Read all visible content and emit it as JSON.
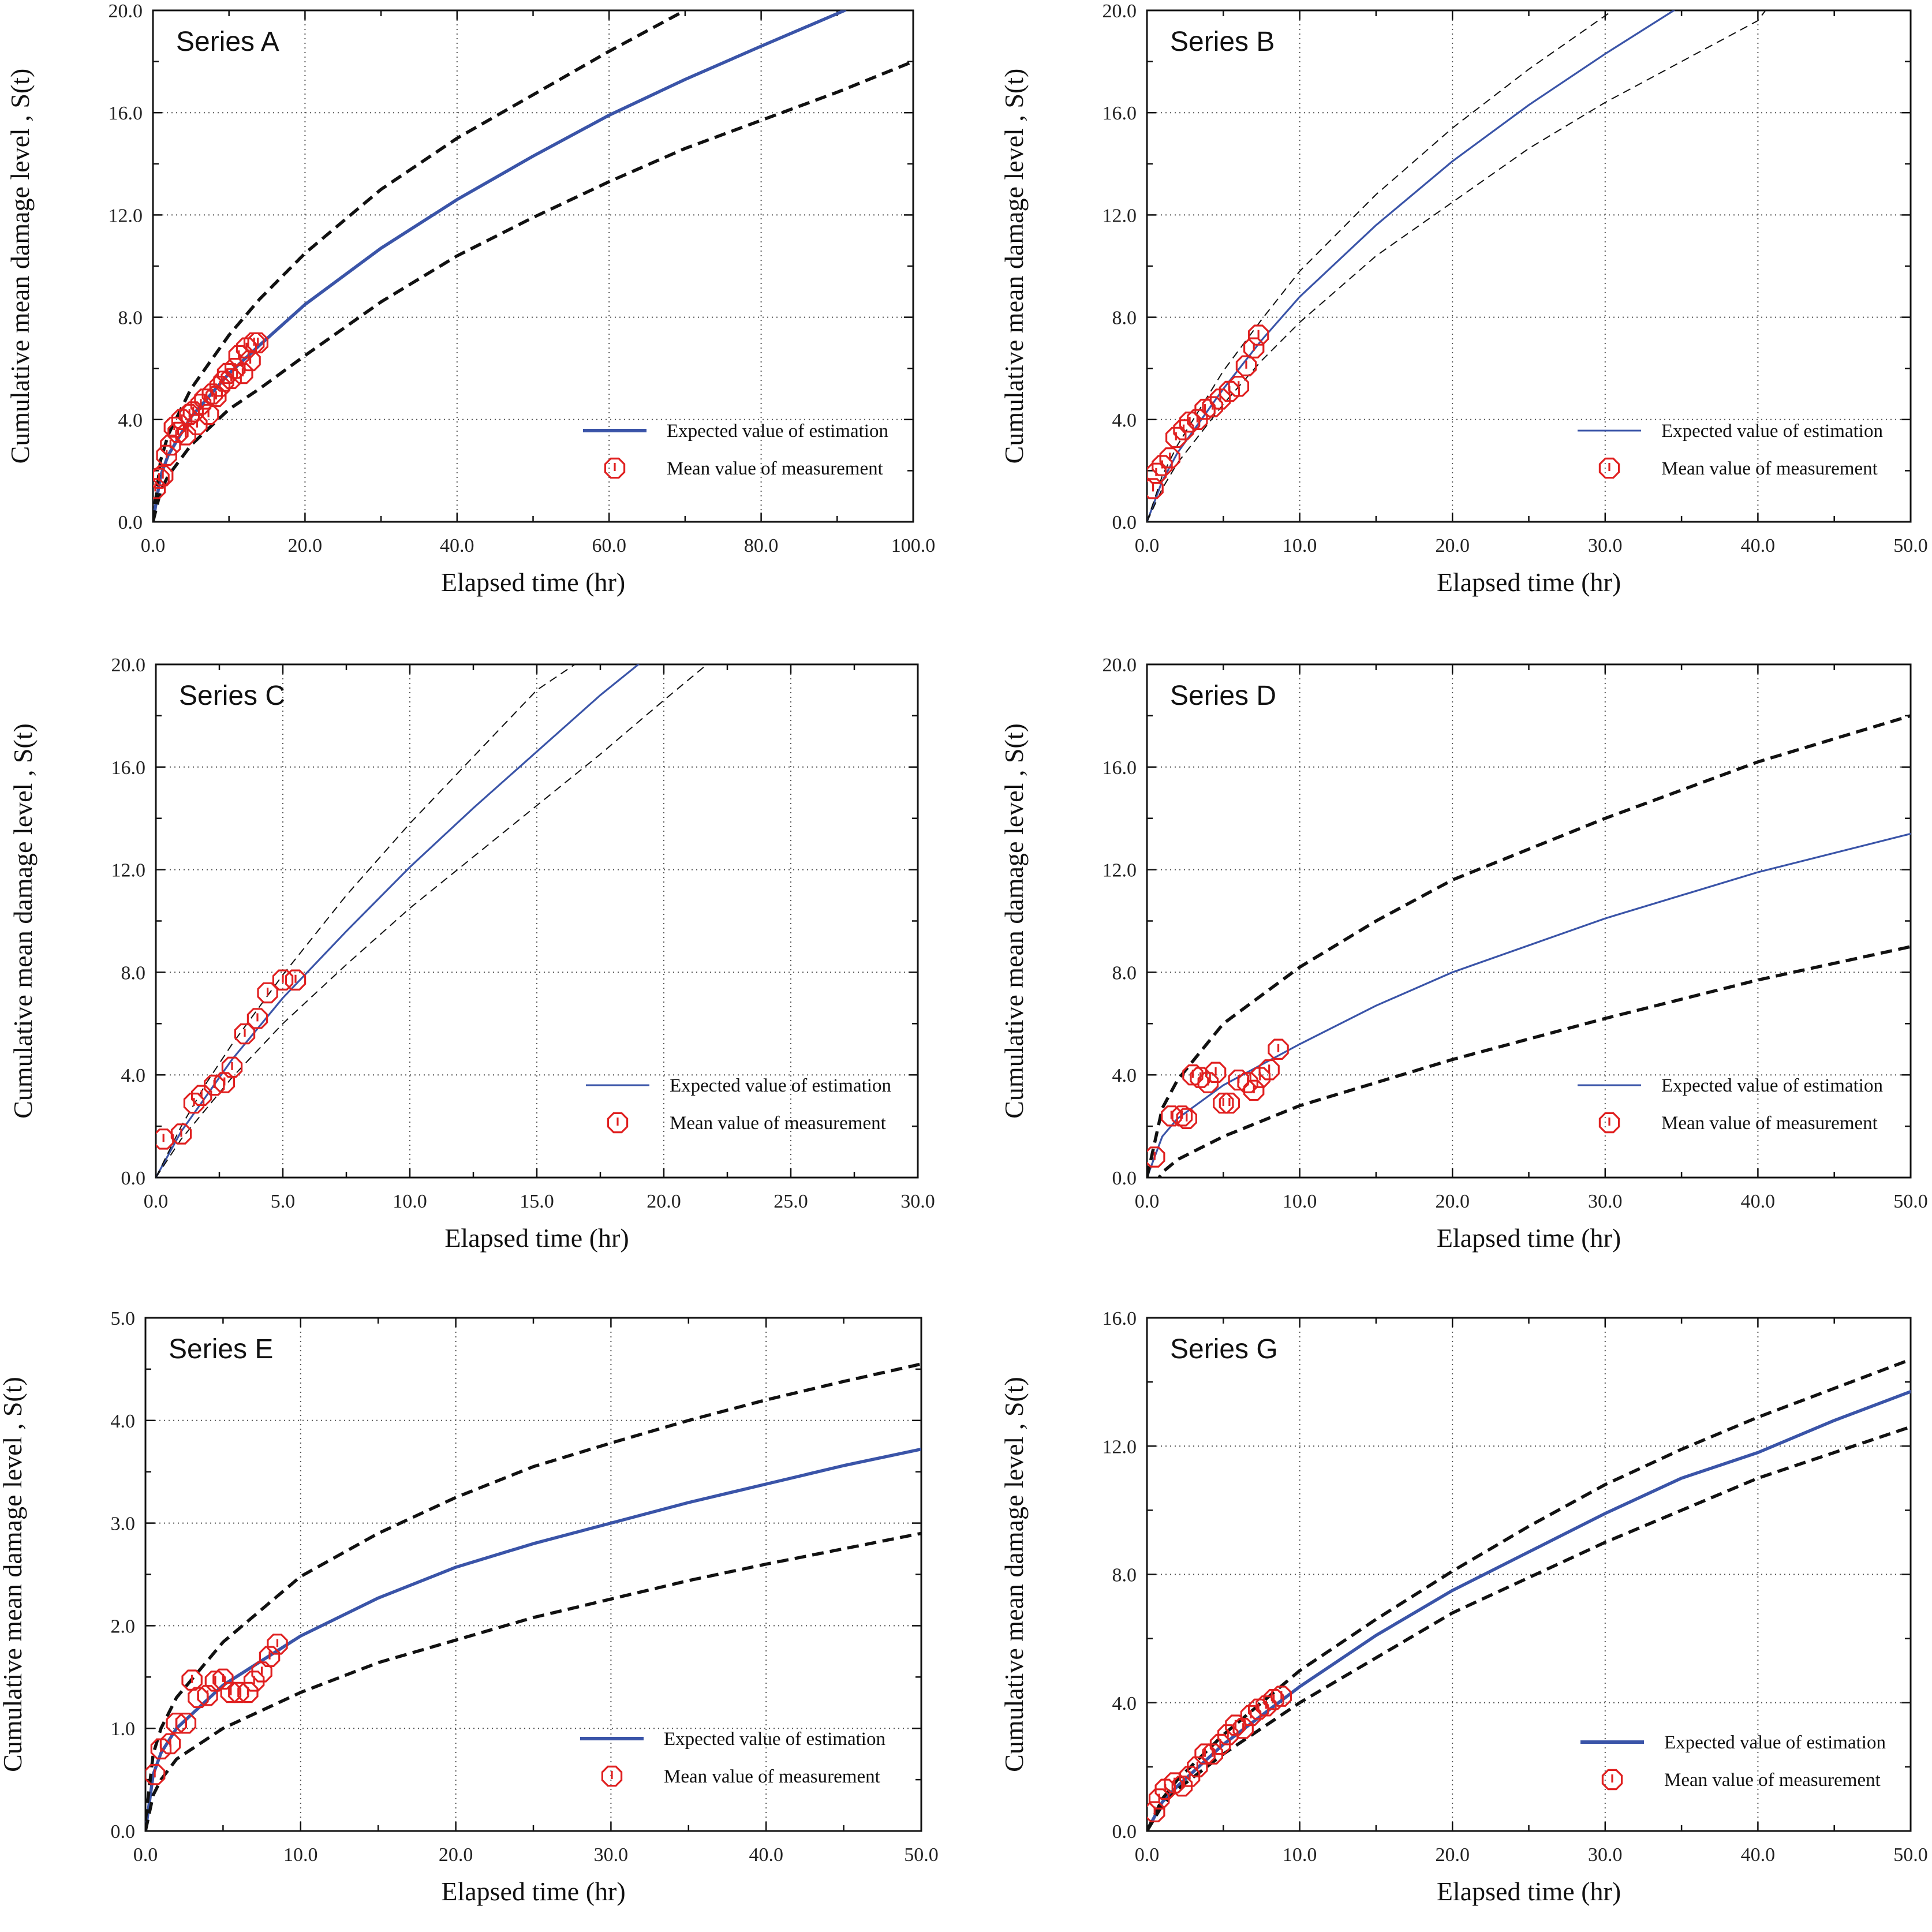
{
  "colors": {
    "expected": "#3a54a8",
    "bounds": "#111111",
    "measurement": "#e02020",
    "grid": "#555555",
    "axis": "#111111"
  },
  "chart_data": [
    {
      "type": "line",
      "title": "Series A",
      "xlabel": "Elapsed time (hr)",
      "ylabel": "Cumulative mean damage level , S(t)",
      "xlim": [
        0,
        100
      ],
      "ylim": [
        0,
        20
      ],
      "xticks": [
        0,
        20,
        40,
        60,
        80,
        100
      ],
      "xtick_labels": [
        "0.0",
        "20.0",
        "40.0",
        "60.0",
        "80.0",
        "100.0"
      ],
      "yticks": [
        0,
        4,
        8,
        12,
        16,
        20
      ],
      "ytick_labels": [
        "0.0",
        "4.0",
        "8.0",
        "12.0",
        "16.0",
        "20.0"
      ],
      "grid": true,
      "legend_style": "thick",
      "bounds_style": "thick",
      "legend": [
        "Expected value of estimation",
        "Mean value of measurement"
      ],
      "series": [
        {
          "name": "Expected value of estimation",
          "kind": "expected",
          "x": [
            0,
            1,
            2,
            5,
            10,
            14,
            20,
            30,
            40,
            50,
            60,
            70,
            80,
            91
          ],
          "y": [
            0,
            1.8,
            2.6,
            4.1,
            5.8,
            6.9,
            8.5,
            10.7,
            12.6,
            14.3,
            15.9,
            17.3,
            18.6,
            20
          ]
        },
        {
          "name": "Upper bound",
          "kind": "upper",
          "x": [
            0,
            1,
            2,
            5,
            10,
            14,
            20,
            30,
            40,
            50,
            60,
            70
          ],
          "y": [
            0,
            2.4,
            3.4,
            5.2,
            7.3,
            8.7,
            10.5,
            13.0,
            15.0,
            16.7,
            18.4,
            20
          ]
        },
        {
          "name": "Lower bound",
          "kind": "lower",
          "x": [
            0,
            1,
            2,
            5,
            10,
            14,
            20,
            30,
            40,
            50,
            60,
            70,
            80,
            90,
            100
          ],
          "y": [
            0,
            1.2,
            1.8,
            3.0,
            4.4,
            5.2,
            6.5,
            8.6,
            10.4,
            11.9,
            13.3,
            14.6,
            15.7,
            16.8,
            18.0
          ]
        },
        {
          "name": "Mean value of measurement",
          "kind": "measured",
          "x": [
            0.3,
            0.8,
            1.3,
            1.8,
            2.3,
            2.8,
            3.3,
            3.8,
            4.3,
            4.8,
            5.3,
            5.8,
            6.3,
            6.8,
            7.3,
            7.8,
            8.3,
            8.8,
            9.3,
            9.8,
            10.3,
            10.8,
            11.3,
            11.8,
            12.3,
            12.8,
            13.3,
            13.8
          ],
          "y": [
            1.3,
            1.7,
            1.8,
            2.6,
            3.0,
            3.7,
            3.5,
            4.0,
            3.4,
            4.2,
            4.3,
            3.8,
            4.6,
            4.8,
            4.2,
            5.0,
            4.9,
            5.3,
            5.5,
            5.8,
            5.6,
            6.0,
            6.5,
            5.8,
            6.8,
            6.3,
            7.0,
            7.0
          ]
        }
      ]
    },
    {
      "type": "line",
      "title": "Series B",
      "xlabel": "Elapsed time (hr)",
      "ylabel": "Cumulative mean damage level , S(t)",
      "xlim": [
        0,
        50
      ],
      "ylim": [
        0,
        20
      ],
      "xticks": [
        0,
        10,
        20,
        30,
        40,
        50
      ],
      "xtick_labels": [
        "0.0",
        "10.0",
        "20.0",
        "30.0",
        "40.0",
        "50.0"
      ],
      "yticks": [
        0,
        4,
        8,
        12,
        16,
        20
      ],
      "ytick_labels": [
        "0.0",
        "4.0",
        "8.0",
        "12.0",
        "16.0",
        "20.0"
      ],
      "grid": true,
      "legend_style": "thin",
      "bounds_style": "thin",
      "legend": [
        "Expected value of estimation",
        "Mean value of measurement"
      ],
      "series": [
        {
          "name": "Expected value of estimation",
          "kind": "expected",
          "x": [
            0,
            1,
            2,
            5,
            7.5,
            10,
            15,
            20,
            25,
            30,
            34.5
          ],
          "y": [
            0,
            1.6,
            2.7,
            5.2,
            7.1,
            8.8,
            11.6,
            14.1,
            16.3,
            18.3,
            20
          ]
        },
        {
          "name": "Upper bound",
          "kind": "upper",
          "x": [
            0,
            1,
            2,
            5,
            7.5,
            10,
            15,
            20,
            25,
            30.5
          ],
          "y": [
            0,
            1.8,
            3.0,
            5.9,
            7.9,
            9.8,
            12.8,
            15.4,
            17.7,
            20
          ]
        },
        {
          "name": "Lower bound",
          "kind": "lower",
          "x": [
            0,
            1,
            2,
            5,
            7.5,
            10,
            15,
            20,
            25,
            30,
            35,
            40,
            40.5
          ],
          "y": [
            0,
            1.3,
            2.3,
            4.6,
            6.3,
            7.8,
            10.4,
            12.5,
            14.6,
            16.4,
            18.0,
            19.6,
            20
          ]
        },
        {
          "name": "Mean value of measurement",
          "kind": "measured",
          "x": [
            0.4,
            0.6,
            1.0,
            1.5,
            1.9,
            2.4,
            2.8,
            3.3,
            3.8,
            4.3,
            4.8,
            5.4,
            6.0,
            6.5,
            7.0,
            7.3
          ],
          "y": [
            1.3,
            1.9,
            2.2,
            2.5,
            3.3,
            3.6,
            3.9,
            4.0,
            4.4,
            4.5,
            4.8,
            5.1,
            5.3,
            6.1,
            6.8,
            7.3
          ]
        }
      ]
    },
    {
      "type": "line",
      "title": "Series C",
      "xlabel": "Elapsed time (hr)",
      "ylabel": "Cumulative mean damage level , S(t)",
      "xlim": [
        0,
        30
      ],
      "ylim": [
        0,
        20
      ],
      "xticks": [
        0,
        5,
        10,
        15,
        20,
        25,
        30
      ],
      "xtick_labels": [
        "0.0",
        "5.0",
        "10.0",
        "15.0",
        "20.0",
        "25.0",
        "30.0"
      ],
      "yticks": [
        0,
        4,
        8,
        12,
        16,
        20
      ],
      "ytick_labels": [
        "0.0",
        "4.0",
        "8.0",
        "12.0",
        "16.0",
        "20.0"
      ],
      "grid": true,
      "legend_style": "thin",
      "bounds_style": "thin",
      "legend": [
        "Expected value of estimation",
        "Mean value of measurement"
      ],
      "series": [
        {
          "name": "Expected value of estimation",
          "kind": "expected",
          "x": [
            0,
            1,
            2,
            3,
            5,
            7.5,
            10,
            12.5,
            15,
            17.5,
            19
          ],
          "y": [
            0,
            1.8,
            3.2,
            4.6,
            7.0,
            9.6,
            12.1,
            14.4,
            16.6,
            18.8,
            20
          ]
        },
        {
          "name": "Upper bound",
          "kind": "upper",
          "x": [
            0,
            1,
            2,
            3,
            5,
            7.5,
            10,
            12.5,
            15,
            16.5
          ],
          "y": [
            0,
            2.0,
            3.7,
            5.2,
            7.9,
            11.0,
            13.8,
            16.4,
            19.0,
            20
          ]
        },
        {
          "name": "Lower bound",
          "kind": "lower",
          "x": [
            0,
            1,
            2,
            3,
            5,
            7.5,
            10,
            12.5,
            15,
            17.5,
            20,
            21.7
          ],
          "y": [
            0,
            1.5,
            2.7,
            3.9,
            6.0,
            8.3,
            10.5,
            12.5,
            14.5,
            16.5,
            18.6,
            20
          ]
        },
        {
          "name": "Mean value of measurement",
          "kind": "measured",
          "x": [
            0.3,
            1.0,
            1.5,
            1.8,
            2.3,
            2.7,
            3.0,
            3.5,
            4.0,
            4.4,
            5.0,
            5.5
          ],
          "y": [
            1.5,
            1.7,
            2.9,
            3.2,
            3.6,
            3.7,
            4.3,
            5.6,
            6.2,
            7.2,
            7.7,
            7.7
          ]
        }
      ]
    },
    {
      "type": "line",
      "title": "Series D",
      "xlabel": "Elapsed time (hr)",
      "ylabel": "Cumulative mean damage level , S(t)",
      "xlim": [
        0,
        50
      ],
      "ylim": [
        0,
        20
      ],
      "xticks": [
        0,
        10,
        20,
        30,
        40,
        50
      ],
      "xtick_labels": [
        "0.0",
        "10.0",
        "20.0",
        "30.0",
        "40.0",
        "50.0"
      ],
      "yticks": [
        0,
        4,
        8,
        12,
        16,
        20
      ],
      "ytick_labels": [
        "0.0",
        "4.0",
        "8.0",
        "12.0",
        "16.0",
        "20.0"
      ],
      "grid": true,
      "legend_style": "thin",
      "bounds_style": "thick",
      "legend": [
        "Expected value of estimation",
        "Mean value of measurement"
      ],
      "series": [
        {
          "name": "Expected value of estimation",
          "kind": "expected",
          "x": [
            0,
            1,
            2,
            5,
            10,
            15,
            20,
            30,
            40,
            50
          ],
          "y": [
            0,
            1.6,
            2.3,
            3.6,
            5.2,
            6.7,
            8.0,
            10.1,
            11.9,
            13.4
          ]
        },
        {
          "name": "Upper bound",
          "kind": "upper",
          "x": [
            0,
            1,
            2,
            5,
            10,
            15,
            20,
            30,
            40,
            50
          ],
          "y": [
            0,
            2.7,
            3.8,
            6.0,
            8.2,
            10.0,
            11.6,
            14.0,
            16.2,
            18.0
          ]
        },
        {
          "name": "Lower bound",
          "kind": "lower",
          "x": [
            0.5,
            1,
            2,
            5,
            10,
            15,
            20,
            30,
            40,
            50
          ],
          "y": [
            -0.3,
            0.2,
            0.7,
            1.6,
            2.8,
            3.7,
            4.6,
            6.2,
            7.7,
            9.0
          ]
        },
        {
          "name": "Mean value of measurement",
          "kind": "measured",
          "x": [
            0.5,
            1.6,
            2.3,
            2.6,
            3.0,
            3.5,
            4.0,
            4.5,
            5.0,
            5.4,
            6.0,
            6.6,
            7.0,
            7.4,
            8.0,
            8.6
          ],
          "y": [
            0.8,
            2.4,
            2.4,
            2.3,
            4.0,
            3.9,
            3.7,
            4.1,
            2.9,
            2.9,
            3.8,
            3.7,
            3.4,
            3.9,
            4.2,
            5.0
          ]
        }
      ]
    },
    {
      "type": "line",
      "title": "Series E",
      "xlabel": "Elapsed time (hr)",
      "ylabel": "Cumulative mean damage level , S(t)",
      "xlim": [
        0,
        50
      ],
      "ylim": [
        0,
        5
      ],
      "xticks": [
        0,
        10,
        20,
        30,
        40,
        50
      ],
      "xtick_labels": [
        "0.0",
        "10.0",
        "20.0",
        "30.0",
        "40.0",
        "50.0"
      ],
      "yticks": [
        0,
        1,
        2,
        3,
        4,
        5
      ],
      "ytick_labels": [
        "0.0",
        "1.0",
        "2.0",
        "3.0",
        "4.0",
        "5.0"
      ],
      "grid": true,
      "legend_style": "thick",
      "bounds_style": "thick",
      "legend": [
        "Expected value of estimation",
        "Mean value of measurement"
      ],
      "series": [
        {
          "name": "Expected value of estimation",
          "kind": "expected",
          "x": [
            0,
            0.5,
            1,
            2,
            5,
            10,
            15,
            20,
            25,
            30,
            35,
            40,
            45,
            50
          ],
          "y": [
            0,
            0.55,
            0.76,
            1.0,
            1.42,
            1.9,
            2.27,
            2.57,
            2.8,
            3.0,
            3.2,
            3.38,
            3.56,
            3.72
          ]
        },
        {
          "name": "Upper bound",
          "kind": "upper",
          "x": [
            0,
            0.5,
            1,
            2,
            5,
            10,
            15,
            20,
            25,
            30,
            35,
            40,
            45,
            50
          ],
          "y": [
            0.1,
            0.75,
            1.0,
            1.3,
            1.84,
            2.48,
            2.9,
            3.25,
            3.55,
            3.78,
            4.0,
            4.2,
            4.38,
            4.55
          ]
        },
        {
          "name": "Lower bound",
          "kind": "lower",
          "x": [
            0,
            0.5,
            1,
            2,
            5,
            10,
            15,
            20,
            25,
            30,
            35,
            40,
            45,
            50
          ],
          "y": [
            0,
            0.35,
            0.5,
            0.7,
            1.0,
            1.35,
            1.64,
            1.86,
            2.08,
            2.26,
            2.44,
            2.6,
            2.75,
            2.9
          ]
        },
        {
          "name": "Mean value of measurement",
          "kind": "measured",
          "x": [
            0.6,
            1.0,
            1.6,
            2.0,
            2.6,
            3.0,
            3.4,
            4.0,
            4.5,
            5.0,
            5.5,
            6.0,
            6.6,
            7.0,
            7.5,
            8.0,
            8.5
          ],
          "y": [
            0.55,
            0.8,
            0.85,
            1.05,
            1.05,
            1.47,
            1.3,
            1.32,
            1.46,
            1.48,
            1.35,
            1.35,
            1.35,
            1.46,
            1.55,
            1.7,
            1.82
          ]
        }
      ]
    },
    {
      "type": "line",
      "title": "Series G",
      "xlabel": "Elapsed time (hr)",
      "ylabel": "Cumulative mean damage level , S(t)",
      "xlim": [
        0,
        50
      ],
      "ylim": [
        0,
        16
      ],
      "xticks": [
        0,
        10,
        20,
        30,
        40,
        50
      ],
      "xtick_labels": [
        "0.0",
        "10.0",
        "20.0",
        "30.0",
        "40.0",
        "50.0"
      ],
      "yticks": [
        0,
        4,
        8,
        12,
        16
      ],
      "ytick_labels": [
        "0.0",
        "4.0",
        "8.0",
        "12.0",
        "16.0"
      ],
      "grid": true,
      "legend_style": "thick",
      "bounds_style": "thick",
      "legend": [
        "Expected value of estimation",
        "Mean value of measurement"
      ],
      "series": [
        {
          "name": "Expected value of estimation",
          "kind": "expected",
          "x": [
            0,
            1,
            2,
            5,
            10,
            15,
            20,
            25,
            30,
            35,
            40,
            45,
            50
          ],
          "y": [
            0,
            0.9,
            1.4,
            2.7,
            4.5,
            6.1,
            7.5,
            8.7,
            9.9,
            11.0,
            11.8,
            12.8,
            13.7
          ]
        },
        {
          "name": "Upper bound",
          "kind": "upper",
          "x": [
            0,
            1,
            2,
            5,
            10,
            15,
            20,
            25,
            30,
            35,
            40,
            45,
            50
          ],
          "y": [
            0,
            1.0,
            1.6,
            3.0,
            5.0,
            6.6,
            8.1,
            9.5,
            10.8,
            11.9,
            12.9,
            13.8,
            14.7
          ]
        },
        {
          "name": "Lower bound",
          "kind": "lower",
          "x": [
            0,
            1,
            2,
            5,
            10,
            15,
            20,
            25,
            30,
            35,
            40,
            45,
            50
          ],
          "y": [
            0,
            0.8,
            1.3,
            2.4,
            4.0,
            5.4,
            6.8,
            7.9,
            9.0,
            10.0,
            11.0,
            11.8,
            12.6
          ]
        },
        {
          "name": "Mean value of measurement",
          "kind": "measured",
          "x": [
            0.5,
            0.8,
            1.2,
            1.8,
            2.3,
            2.8,
            3.3,
            3.8,
            4.3,
            4.8,
            5.3,
            5.8,
            6.3,
            6.8,
            7.3,
            7.8,
            8.3,
            8.8
          ],
          "y": [
            0.6,
            1.0,
            1.3,
            1.5,
            1.4,
            1.7,
            2.0,
            2.4,
            2.4,
            2.7,
            3.0,
            3.3,
            3.2,
            3.6,
            3.8,
            3.9,
            4.1,
            4.2
          ]
        }
      ]
    }
  ]
}
